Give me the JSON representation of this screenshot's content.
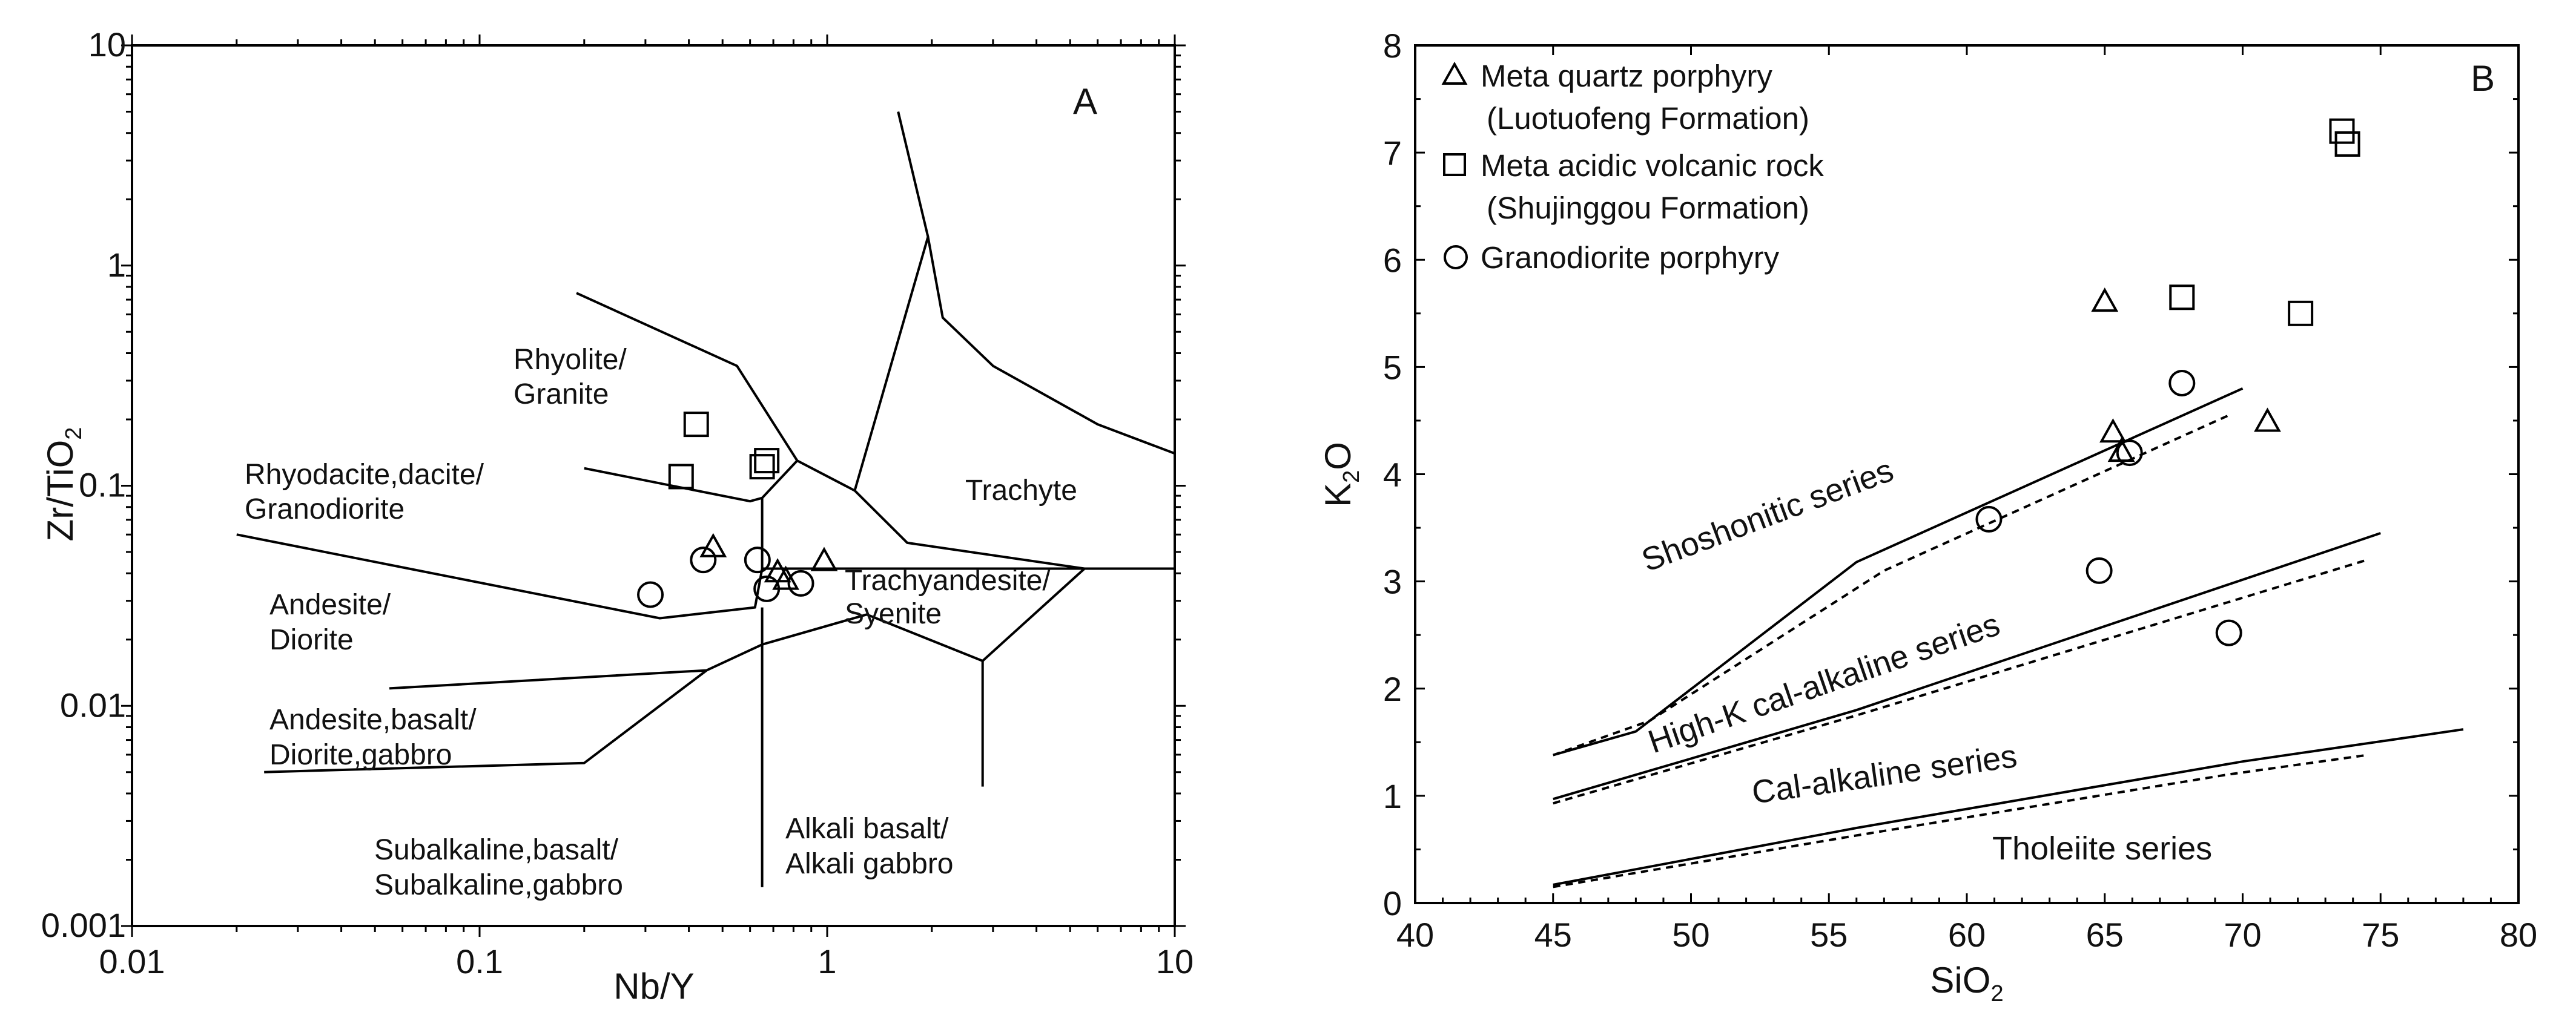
{
  "chart_data": [
    {
      "type": "scatter",
      "panel_label": "A",
      "xlabel": "Nb/Y",
      "ylabel": "Zr/TiO2",
      "ylabel_main": "Zr/TiO",
      "ylabel_sub": "2",
      "xscale": "log",
      "yscale": "log",
      "xlim": [
        0.01,
        10
      ],
      "ylim": [
        0.001,
        10
      ],
      "xtick_labels": [
        "0.01",
        "0.1",
        "1",
        "10"
      ],
      "ytick_labels": [
        "0.001",
        "0.01",
        "0.1",
        "1",
        "10"
      ],
      "regions": {
        "rhyolite": [
          "Rhyolite/",
          "Granite"
        ],
        "rhyodacite": [
          "Rhyodacite,dacite/",
          "Granodiorite"
        ],
        "andesite": [
          "Andesite/",
          "Diorite"
        ],
        "andesite_basalt": [
          "Andesite,basalt/",
          "Diorite,gabbro"
        ],
        "subalkaline": [
          "Subalkaline,basalt/",
          "Subalkaline,gabbro"
        ],
        "alkali": [
          "Alkali basalt/",
          "Alkali gabbro"
        ],
        "trachyandesite": [
          "Trachyandesite/",
          "Syenite"
        ],
        "trachyte": [
          "Trachyte"
        ]
      },
      "boundaries": [
        [
          [
            0.19,
            0.75
          ],
          [
            0.55,
            0.35
          ],
          [
            0.82,
            0.13
          ],
          [
            1.2,
            0.095
          ],
          [
            1.95,
            1.35
          ],
          [
            2.15,
            0.58
          ],
          [
            3.0,
            0.35
          ],
          [
            6.0,
            0.19
          ],
          [
            10,
            0.14
          ]
        ],
        [
          [
            0.2,
            0.12
          ],
          [
            0.6,
            0.085
          ],
          [
            0.65,
            0.088
          ],
          [
            0.82,
            0.13
          ]
        ],
        [
          [
            0.65,
            0.088
          ],
          [
            0.65,
            0.042
          ]
        ],
        [
          [
            0.02,
            0.06
          ],
          [
            0.33,
            0.025
          ],
          [
            0.62,
            0.028
          ],
          [
            0.65,
            0.042
          ],
          [
            5.5,
            0.042
          ],
          [
            10,
            0.042
          ]
        ],
        [
          [
            1.2,
            0.095
          ],
          [
            1.7,
            0.055
          ],
          [
            5.5,
            0.042
          ]
        ],
        [
          [
            0.055,
            0.012
          ],
          [
            0.45,
            0.0145
          ],
          [
            0.65,
            0.019
          ],
          [
            1.3,
            0.026
          ],
          [
            2.8,
            0.016
          ],
          [
            5.5,
            0.042
          ]
        ],
        [
          [
            0.024,
            0.005
          ],
          [
            0.2,
            0.0055
          ],
          [
            0.45,
            0.0145
          ]
        ],
        [
          [
            0.65,
            0.028
          ],
          [
            0.65,
            0.0015
          ]
        ],
        [
          [
            2.8,
            0.016
          ],
          [
            2.8,
            0.0043
          ]
        ],
        [
          [
            1.6,
            5.0
          ],
          [
            1.95,
            1.35
          ]
        ]
      ],
      "series": [
        {
          "name": "Meta quartz porphyry",
          "marker": "triangle",
          "points": [
            [
              0.47,
              0.052
            ],
            [
              0.72,
              0.04
            ],
            [
              0.76,
              0.037
            ],
            [
              0.98,
              0.045
            ]
          ]
        },
        {
          "name": "Meta acidic volcanic rock",
          "marker": "square",
          "points": [
            [
              0.38,
              0.11
            ],
            [
              0.42,
              0.19
            ],
            [
              0.65,
              0.122
            ],
            [
              0.67,
              0.13
            ]
          ]
        },
        {
          "name": "Granodiorite porphyry",
          "marker": "circle",
          "points": [
            [
              0.31,
              0.032
            ],
            [
              0.44,
              0.046
            ],
            [
              0.63,
              0.046
            ],
            [
              0.67,
              0.034
            ],
            [
              0.84,
              0.036
            ]
          ]
        }
      ]
    },
    {
      "type": "scatter",
      "panel_label": "B",
      "xlabel": "SiO2",
      "xlabel_main": "SiO",
      "xlabel_sub": "2",
      "ylabel": "K2O",
      "ylabel_pre": "K",
      "ylabel_sub": "2",
      "ylabel_post": "O",
      "xlim": [
        40,
        80
      ],
      "ylim": [
        0,
        8
      ],
      "xticks": [
        40,
        45,
        50,
        55,
        60,
        65,
        70,
        75,
        80
      ],
      "yticks": [
        0,
        1,
        2,
        3,
        4,
        5,
        6,
        7,
        8
      ],
      "series_labels": [
        "Shoshonitic series",
        "High-K cal-alkaline series",
        "Cal-alkaline series",
        "Tholeiite series"
      ],
      "boundaries_solid": [
        [
          [
            45,
            1.38
          ],
          [
            48,
            1.6
          ],
          [
            56,
            3.18
          ],
          [
            70,
            4.8
          ]
        ],
        [
          [
            45,
            0.97
          ],
          [
            56,
            1.8
          ],
          [
            75,
            3.45
          ]
        ],
        [
          [
            45,
            0.17
          ],
          [
            56,
            0.7
          ],
          [
            70,
            1.32
          ],
          [
            78,
            1.62
          ]
        ]
      ],
      "boundaries_dashed": [
        [
          [
            45,
            1.38
          ],
          [
            48.5,
            1.7
          ],
          [
            57,
            3.1
          ],
          [
            69.5,
            4.55
          ]
        ],
        [
          [
            45,
            0.93
          ],
          [
            56,
            1.75
          ],
          [
            74.5,
            3.2
          ]
        ],
        [
          [
            45,
            0.15
          ],
          [
            56,
            0.63
          ],
          [
            69.5,
            1.2
          ],
          [
            74.5,
            1.38
          ]
        ]
      ],
      "legend": [
        {
          "marker": "triangle",
          "lines": [
            "Meta quartz porphyry",
            "(Luotuofeng Formation)"
          ]
        },
        {
          "marker": "square",
          "lines": [
            "Meta acidic volcanic rock",
            "(Shujinggou Formation)"
          ]
        },
        {
          "marker": "circle",
          "lines": [
            "Granodiorite porphyry"
          ]
        }
      ],
      "series": [
        {
          "name": "Meta quartz porphyry",
          "marker": "triangle",
          "points": [
            [
              65.0,
              5.6
            ],
            [
              65.3,
              4.38
            ],
            [
              65.6,
              4.2
            ],
            [
              70.9,
              4.48
            ]
          ]
        },
        {
          "name": "Meta acidic volcanic rock",
          "marker": "square",
          "points": [
            [
              67.8,
              5.65
            ],
            [
              72.1,
              5.5
            ],
            [
              73.6,
              7.2
            ],
            [
              73.8,
              7.08
            ]
          ]
        },
        {
          "name": "Granodiorite porphyry",
          "marker": "circle",
          "points": [
            [
              60.8,
              3.58
            ],
            [
              64.8,
              3.1
            ],
            [
              65.9,
              4.2
            ],
            [
              67.8,
              4.85
            ],
            [
              69.5,
              2.52
            ]
          ]
        }
      ]
    }
  ]
}
